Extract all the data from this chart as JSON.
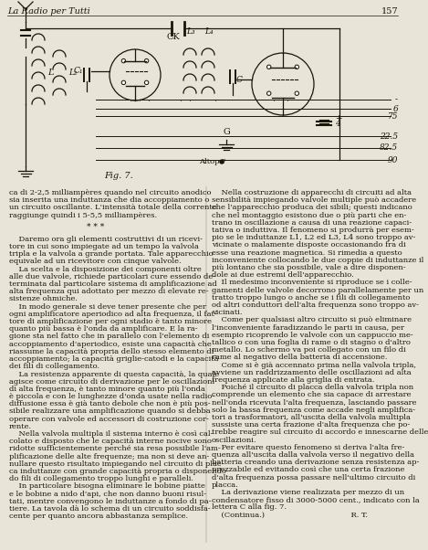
{
  "background_color": "#e8e4d8",
  "text_color": "#1a1505",
  "page_header_left": "La Radio per Tutti",
  "page_number": "157",
  "col1_text": [
    "ca di 2-2,5 milliampères quando nel circuito anodico",
    "sia inserita una induttanza che dia accoppiamento o",
    "un circuito oscillante. L'intensità totale della corrente",
    "raggiunge quindi i 5-5,5 milliampères.",
    "",
    "* * *",
    "",
    "    Daremo ora gli elementi costruttivi di un ricevi-",
    "tore in cui sono impiegate ad un tempo la valvola",
    "tripla e la valvola a grande portata. Tale apparecchio",
    "equivale ad un ricevitore con cinque valvole.",
    "    La scelta e la disposizione dei componenti oltre",
    "alle due valvole, richiede particolari cure essendo de-",
    "terminata dal particolare sistema di amplificazione ad",
    "alta frequenza qui adottato per mezzo di elevate re-",
    "sistenze ohmiche.",
    "    In modo generale si deve tener presente che per",
    "ogni amplificatore aperiodico ad alta frequenza, il fat-",
    "tore di amplificazione per ogni stadio è tanto minore",
    "quanto più bassa è l'onda da amplificare. E la ra-",
    "gione sta nel fatto che in parallelo con l'elemento di",
    "accoppiamento d'aperiodico, esiste una capacità che",
    "riassume la capacità propria dello stesso elemento di",
    "accoppiamento; la capacità griglie-catodi e la capacità",
    "dei fili di collegamento.",
    "    La resistenza apparente di questa capacità, la quale",
    "agisce come circuito di derivazione per le oscillazioni",
    "di alta frequenza, è tanto minore quanto più l'onda",
    "è piccola e con le lunghezze d'onda usate nella radio-",
    "diffusione essa è già tanto debole che non è più pos-",
    "sibile realizzare una amplificazione quando si debba",
    "operare con valvole ed accessori di costruzione cor-",
    "rente.",
    "    Nella valvola multipla il sistema interno è così cal-",
    "colato e disposto che le capacità interne nocive sono",
    "ridotte sufficientemente perché sia resa possibile l'am-",
    "plificazione delle alte frequenze; ma non si deve an-",
    "nullare questo risultato impiegando nel circuito di plac-",
    "ca induttanze con grande capacità propria o disponendo-",
    "do fili di collegamento troppo lunghi e paralleli.",
    "    In particolare bisogna eliminare le bobine piatte",
    "e le bobine a nido d'api, che non danno buoni risul-",
    "tati, mentre convengono le induttanze a fondo di pa-",
    "tiere. La tavola dà lo schema di un circuito soddisfa-",
    "cente per quanto ancora abbastanza semplice."
  ],
  "col2_text": [
    "    Nella costruzione di apparecchi di circuiti ad alta",
    "sensibilità impiegando valvole multiple può accadere",
    "che l'apparecchio produca dei sibili; questi indicano",
    "che nel montaggio esistono due o più parti che en-",
    "trano in oscillazione a causa di una reazione capaci-",
    "tativa o induttiva. Il fenomeno si produrrà per esem-",
    "pio se le induttanze L1, L2 ed L3, L4 sono troppo av-",
    "vicinate o malamente disposte occasionando fra di",
    "esse una reazione magnetica. Si rimedia a questo",
    "inconveniente collocando le due coppie di induttanze il",
    "più lontano che sia possibile, vale a dire disponen-",
    "dole ai due estremi dell'apparecchio.",
    "    Il medesimo inconveniente si riproduce se i colle-",
    "gamenti delle valvole decorrono parallelamente per un",
    "tratto troppo lungo o anche se i fili di collegamento",
    "od altri conduttori dell'alta frequenza sono troppo av-",
    "vicinati.",
    "    Come per qualsiasi altro circuito si può eliminare",
    "l'inconveniente faradizzando le parti in causa, per",
    "esempio ricoprendo le valvole con un cappuccio me-",
    "tallico o con una foglia di rame o di stagno o d'altro",
    "metallo. Lo schermo va poi collegato con un filo di",
    "rame al negativo della batteria di accensione.",
    "    Come si è già accennato prima nella valvola tripla,",
    "avviene un raddrizzamento delle oscillazioni ad alta",
    "frequenza applicate alla griglia di entrata.",
    "    Poiché il circuito di placca della valvola tripla non",
    "comprende un elemento che sia capace di arrestare",
    "nell'onda ricevuta l'alta frequenza, lasciando passare",
    "solo la bassa frequenza come accade negli amplifica-",
    "tori a trasformatori, all'uscita della valvola multipla",
    "sussiste una certa frazione d'alta frequenza che po-",
    "trebbe reagire sul circuito di accordo e innescarne delle",
    "oscillazioni.",
    "    Per evitare questo fenomeno si deriva l'alta fre-",
    "quenza all'uscita dalla valvola verso il negativo della",
    "batteria creando una derivazione senza resistenza ap-",
    "prezzabile ed evitando così che una certa frazione",
    "d'alta frequenza possa passare nell'ultimo circuito di",
    "placca.",
    "    La derivazione viene realizzata per mezzo di un",
    "condensatore fisso di 3000-5000 cent., indicato con la",
    "lettera C alla fig. 7.",
    "    (Continua.)                                    R. T."
  ],
  "voltage_labels": [
    "-",
    "6",
    "75",
    "22.5",
    "82.5",
    "90"
  ],
  "battery_label": "4",
  "fig_label": "Fig. 7."
}
